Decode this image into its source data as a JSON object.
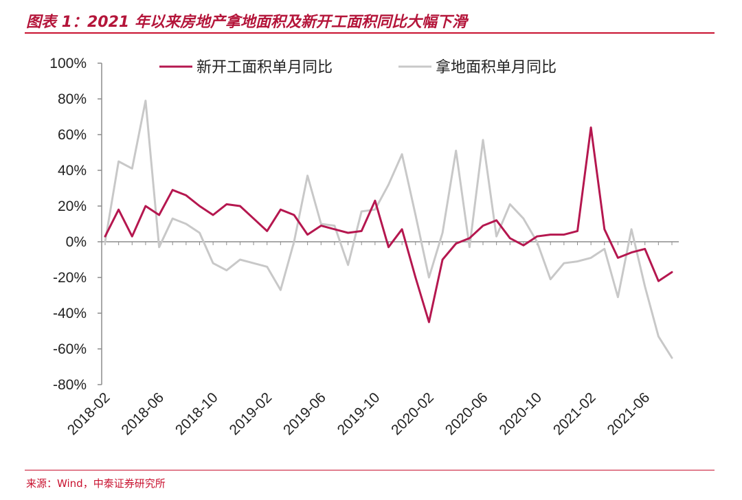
{
  "header": {
    "title": "图表 1：2021 年以来房地产拿地面积及新开工面积同比大幅下滑"
  },
  "footer": {
    "source": "来源：Wind，中泰证券研究所"
  },
  "colors": {
    "accent": "#c8102e",
    "series_new_starts": "#b5174f",
    "series_land": "#c8c8c8",
    "axis": "#8c8c8c"
  },
  "chart_data": {
    "type": "line",
    "title": "",
    "xlabel": "",
    "ylabel": "",
    "ylim": [
      -80,
      100
    ],
    "yticks": [
      -80,
      -60,
      -40,
      -20,
      0,
      20,
      40,
      60,
      80,
      100
    ],
    "ytick_labels": [
      "-80%",
      "-60%",
      "-40%",
      "-20%",
      "0%",
      "20%",
      "40%",
      "60%",
      "80%",
      "100%"
    ],
    "x": [
      "2018-02",
      "2018-03",
      "2018-04",
      "2018-05",
      "2018-06",
      "2018-07",
      "2018-08",
      "2018-09",
      "2018-10",
      "2018-11",
      "2018-12",
      "2019-01",
      "2019-02",
      "2019-03",
      "2019-04",
      "2019-05",
      "2019-06",
      "2019-07",
      "2019-08",
      "2019-09",
      "2019-10",
      "2019-11",
      "2019-12",
      "2020-01",
      "2020-02",
      "2020-03",
      "2020-04",
      "2020-05",
      "2020-06",
      "2020-07",
      "2020-08",
      "2020-09",
      "2020-10",
      "2020-11",
      "2020-12",
      "2021-01",
      "2021-02",
      "2021-03",
      "2021-04",
      "2021-05",
      "2021-06",
      "2021-07",
      "2021-08"
    ],
    "xtick_labels": [
      "2018-02",
      "2018-06",
      "2018-10",
      "2019-02",
      "2019-06",
      "2019-10",
      "2020-02",
      "2020-06",
      "2020-10",
      "2021-02",
      "2021-06"
    ],
    "legend_position": "top",
    "grid": false,
    "series": [
      {
        "name": "新开工面积单月同比",
        "color": "#b5174f",
        "values": [
          3,
          18,
          3,
          20,
          15,
          29,
          26,
          20,
          15,
          21,
          20,
          13,
          6,
          18,
          15,
          4,
          9,
          7,
          5,
          6,
          23,
          -3,
          7,
          -20,
          -45,
          -10,
          -1,
          2,
          9,
          12,
          2,
          -2,
          3,
          4,
          4,
          6,
          64,
          7,
          -9,
          -6,
          -4,
          -22,
          -17
        ]
      },
      {
        "name": "拿地面积单月同比",
        "color": "#c8c8c8",
        "values": [
          0,
          45,
          41,
          79,
          -3,
          13,
          10,
          5,
          -12,
          -16,
          -10,
          -12,
          -14,
          -27,
          0,
          37,
          10,
          9,
          -13,
          17,
          18,
          32,
          49,
          15,
          -20,
          5,
          51,
          -3,
          57,
          3,
          21,
          13,
          0,
          -21,
          -12,
          -11,
          -9,
          -4,
          -31,
          7,
          -25,
          -53,
          -65
        ]
      }
    ]
  }
}
